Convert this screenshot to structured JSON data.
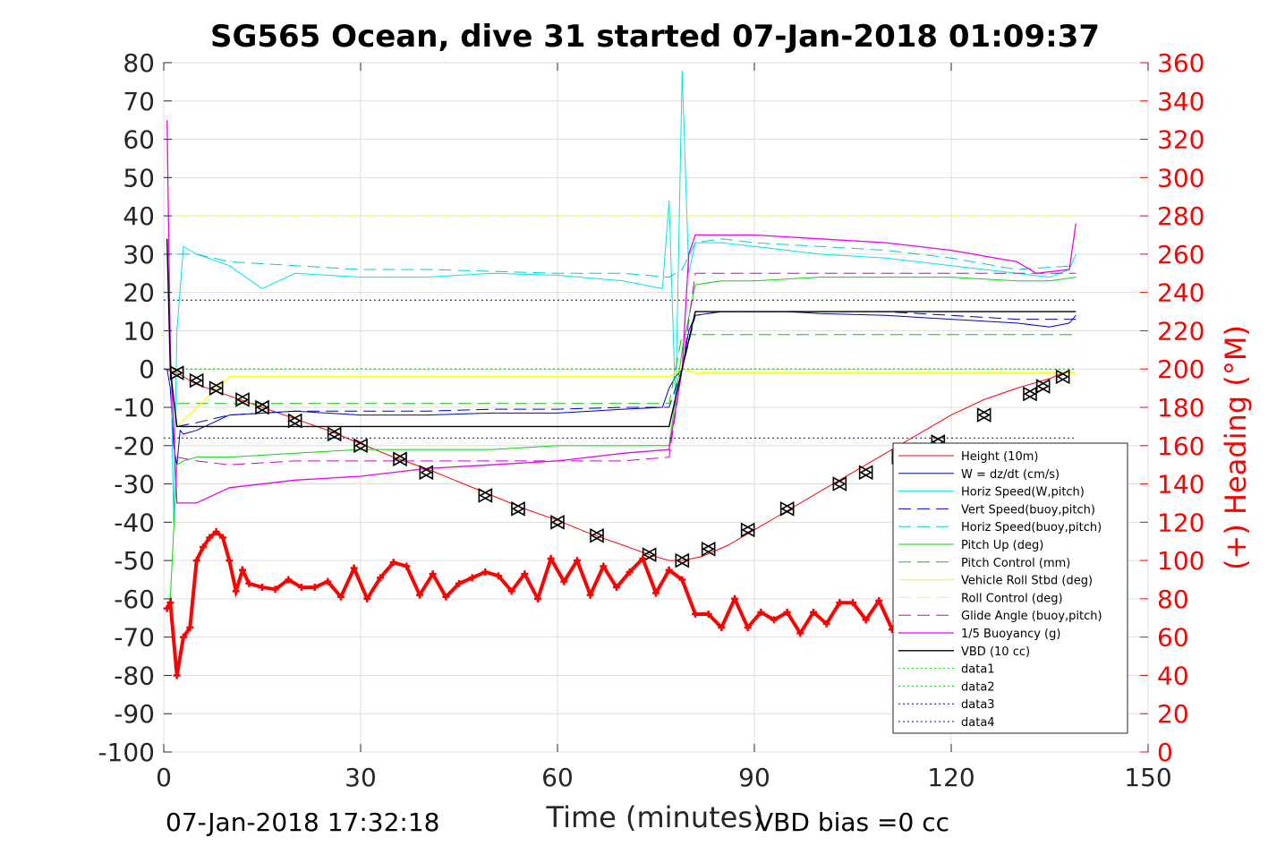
{
  "title": "SG565 Ocean, dive 31 started 07-Jan-2018 01:09:37",
  "footer": {
    "timestamp": "07-Jan-2018 17:32:18",
    "vbd_bias": "VBD bias =0 cc"
  },
  "chart_data": {
    "type": "line",
    "title": "SG565 Ocean, dive 31 started 07-Jan-2018 01:09:37",
    "xlabel": "Time (minutes)",
    "ylabel": "",
    "y2label": "(+) Heading (°M)",
    "xlim": [
      0,
      150
    ],
    "ylim": [
      -100,
      80
    ],
    "y2lim": [
      0,
      360
    ],
    "x_ticks": [
      "0",
      "30",
      "60",
      "90",
      "120",
      "150"
    ],
    "y_ticks": [
      "80",
      "70",
      "60",
      "50",
      "40",
      "30",
      "20",
      "10",
      "0",
      "-10",
      "-20",
      "-30",
      "-40",
      "-50",
      "-60",
      "-70",
      "-80",
      "-90",
      "-100"
    ],
    "y2_ticks": [
      "360",
      "340",
      "320",
      "300",
      "280",
      "260",
      "240",
      "220",
      "200",
      "180",
      "160",
      "140",
      "120",
      "100",
      "80",
      "60",
      "40",
      "20",
      "0"
    ],
    "grid": true,
    "legend_position": "bottom-right",
    "colors": {
      "height": "#ff0000",
      "w": "#0000cc",
      "horiz_w": "#00e5e5",
      "vert_buoy": "#0000cc",
      "horiz_buoy": "#00cccc",
      "pitch_up": "#00dd00",
      "pitch_control": "#00cc00",
      "roll": "#ffff00",
      "roll_control": "#ffff00",
      "glide_angle": "#cc00cc",
      "buoyancy": "#ee00ee",
      "vbd": "#000000",
      "heading": "#ff0000",
      "data1": "#00dd00",
      "data2": "#00cc00",
      "data3": "#000088",
      "data4": "#0000cc"
    },
    "series": [
      {
        "name": "Height (10m)",
        "x": [
          0,
          2,
          5,
          10,
          15,
          20,
          25,
          30,
          35,
          40,
          45,
          50,
          55,
          60,
          65,
          70,
          74,
          77,
          79,
          82,
          86,
          90,
          95,
          100,
          105,
          110,
          115,
          120,
          125,
          130,
          135,
          137
        ],
        "y": [
          0,
          -1,
          -4,
          -7,
          -10,
          -13,
          -16,
          -19.5,
          -23,
          -26,
          -29.5,
          -33,
          -36.5,
          -39.5,
          -43,
          -46,
          -48.5,
          -50,
          -50,
          -49,
          -46,
          -42,
          -37,
          -32,
          -27,
          -22,
          -17,
          -12,
          -8,
          -5,
          -2.5,
          -1
        ]
      },
      {
        "name": "W = dz/dt (cm/s)",
        "x": [
          0.5,
          1,
          1.5,
          2,
          2.5,
          3,
          5,
          10,
          20,
          30,
          40,
          50,
          60,
          70,
          76,
          77,
          78,
          79,
          80,
          81,
          85,
          90,
          95,
          100,
          110,
          120,
          130,
          135,
          138,
          139
        ],
        "y": [
          0,
          -5,
          -20,
          -25,
          -16,
          -17,
          -16,
          -12,
          -11,
          -12,
          -12,
          -11.5,
          -11.5,
          -10.5,
          -10,
          -5,
          -2,
          0,
          10,
          14,
          15,
          15,
          15,
          14.5,
          14,
          13,
          12,
          11,
          12,
          14
        ]
      },
      {
        "name": "Horiz Speed(W,pitch)",
        "x": [
          0.5,
          1,
          1.5,
          2,
          3,
          5,
          10,
          15,
          20,
          30,
          40,
          50,
          60,
          70,
          76,
          77,
          78,
          79,
          80,
          81,
          85,
          90,
          100,
          110,
          120,
          130,
          135,
          138,
          139
        ],
        "y": [
          30,
          10,
          -40,
          10,
          32,
          30,
          27,
          21,
          25,
          24,
          24,
          25,
          24.5,
          23,
          21,
          44,
          -10,
          78,
          25,
          33,
          33,
          32,
          30,
          29,
          27,
          25,
          24,
          26,
          30
        ]
      },
      {
        "name": "Vert Speed(buoy,pitch)",
        "x": [
          2,
          5,
          10,
          20,
          30,
          40,
          50,
          60,
          70,
          77,
          79,
          81,
          85,
          90,
          100,
          110,
          120,
          130,
          139
        ],
        "y": [
          -15,
          -14,
          -12,
          -11,
          -11,
          -11,
          -10.5,
          -10.5,
          -10,
          -10,
          0,
          14,
          15,
          15,
          15,
          15,
          14,
          13,
          13
        ]
      },
      {
        "name": "Horiz Speed(buoy,pitch)",
        "x": [
          2,
          5,
          10,
          20,
          30,
          40,
          50,
          60,
          70,
          77,
          79,
          81,
          85,
          90,
          100,
          110,
          120,
          130,
          139
        ],
        "y": [
          30,
          30,
          28,
          27,
          26,
          26,
          25.5,
          25,
          25,
          24,
          26,
          33,
          34,
          33,
          32,
          31,
          29,
          26,
          27
        ]
      },
      {
        "name": "Pitch Up (deg)",
        "x": [
          1,
          2,
          3,
          5,
          10,
          20,
          30,
          40,
          50,
          60,
          70,
          77,
          79,
          81,
          85,
          90,
          100,
          110,
          120,
          130,
          135,
          139
        ],
        "y": [
          -60,
          -25,
          -24,
          -23,
          -23,
          -22,
          -21,
          -21,
          -21,
          -20,
          -20,
          -20,
          5,
          22,
          23,
          23,
          24,
          24,
          24,
          23,
          23,
          24
        ]
      },
      {
        "name": "Pitch Control (mm)",
        "x": [
          2,
          77,
          79,
          139
        ],
        "y": [
          -9,
          -9,
          9,
          9
        ]
      },
      {
        "name": "Vehicle Roll Stbd (deg)",
        "x": [
          2,
          10,
          20,
          30,
          40,
          50,
          60,
          70,
          77,
          79,
          81,
          90,
          100,
          110,
          120,
          130,
          139
        ],
        "y": [
          -15,
          -2,
          -2,
          -2,
          -2,
          -2,
          -2,
          -2,
          -2,
          0,
          -1,
          -1,
          -1,
          -1,
          -1,
          -1,
          -1
        ]
      },
      {
        "name": "Roll Control (deg)",
        "x": [
          2,
          139
        ],
        "y": [
          40,
          40
        ]
      },
      {
        "name": "Glide Angle (buoy,pitch)",
        "x": [
          2,
          5,
          10,
          20,
          30,
          40,
          50,
          60,
          70,
          77,
          79,
          81,
          85,
          90,
          100,
          110,
          120,
          130,
          139
        ],
        "y": [
          -23,
          -24,
          -25,
          -24,
          -24,
          -24,
          -24,
          -24,
          -24,
          -23,
          0,
          25,
          25,
          25,
          25,
          25,
          25,
          25,
          25
        ]
      },
      {
        "name": "1/5 Buoyancy (g)",
        "x": [
          0.5,
          1,
          2,
          3,
          5,
          10,
          20,
          30,
          40,
          50,
          60,
          70,
          77,
          79,
          80,
          81,
          85,
          90,
          100,
          110,
          120,
          130,
          133,
          138,
          139
        ],
        "y": [
          65,
          5,
          -35,
          -35,
          -35,
          -31,
          -29,
          -28,
          -26,
          -25,
          -24,
          -22,
          -21,
          0,
          30,
          35,
          35,
          35,
          34,
          33,
          31,
          28,
          25,
          26,
          38
        ]
      },
      {
        "name": "VBD (10 cc)",
        "x": [
          0.5,
          1,
          2,
          3,
          10,
          20,
          30,
          40,
          50,
          60,
          70,
          77,
          79,
          81,
          90,
          100,
          110,
          120,
          130,
          139
        ],
        "y": [
          34,
          0,
          -15,
          -15,
          -15,
          -15,
          -15,
          -15,
          -15,
          -15,
          -15,
          -15,
          0,
          15,
          15,
          15,
          15,
          15,
          15,
          15
        ]
      },
      {
        "name": "data1",
        "x": [
          0,
          139
        ],
        "y": [
          0,
          0
        ]
      },
      {
        "name": "data2",
        "x": [
          0,
          139
        ],
        "y": [
          0,
          0
        ]
      },
      {
        "name": "data3",
        "x": [
          0,
          139
        ],
        "y": [
          18,
          18
        ]
      },
      {
        "name": "data4",
        "x": [
          0,
          139
        ],
        "y": [
          -18,
          -18
        ]
      }
    ],
    "heading": {
      "axis": "right",
      "x": [
        0.5,
        1,
        2,
        3,
        4,
        5,
        6,
        7,
        8,
        9,
        10,
        11,
        12,
        13,
        15,
        17,
        19,
        21,
        23,
        25,
        27,
        29,
        31,
        33,
        35,
        37,
        39,
        41,
        43,
        45,
        47,
        49,
        51,
        53,
        55,
        57,
        59,
        61,
        63,
        65,
        67,
        69,
        71,
        73,
        75,
        77,
        79,
        81,
        83,
        85,
        87,
        89,
        91,
        93,
        95,
        97,
        99,
        101,
        103,
        105,
        107,
        109,
        111,
        113,
        115,
        117
      ],
      "y": [
        75,
        78,
        40,
        60,
        65,
        100,
        107,
        112,
        115,
        112,
        100,
        84,
        95,
        88,
        86,
        85,
        90,
        86,
        86,
        89,
        81,
        96,
        80,
        91,
        99,
        97,
        82,
        93,
        81,
        88,
        91,
        94,
        92,
        84,
        93,
        80,
        101,
        89,
        100,
        82,
        97,
        86,
        94,
        101,
        83,
        95,
        90,
        72,
        72,
        65,
        80,
        65,
        73,
        69,
        73,
        62,
        73,
        67,
        78,
        78,
        69,
        79,
        64,
        75,
        64,
        70
      ]
    },
    "markers": {
      "x": [
        2,
        5,
        8,
        12,
        15,
        20,
        26,
        30,
        36,
        40,
        49,
        54,
        60,
        66,
        74,
        79,
        83,
        89,
        95,
        103,
        107,
        112,
        118,
        125,
        132,
        134,
        137
      ],
      "y": [
        -1,
        -3,
        -5,
        -8,
        -10,
        -13.5,
        -17,
        -20,
        -23.5,
        -27,
        -33,
        -36.5,
        -40,
        -43.5,
        -48.5,
        -50,
        -47,
        -42,
        -36.5,
        -30,
        -27,
        -23,
        -19,
        -12,
        -6.5,
        -4.5,
        -2
      ]
    }
  }
}
